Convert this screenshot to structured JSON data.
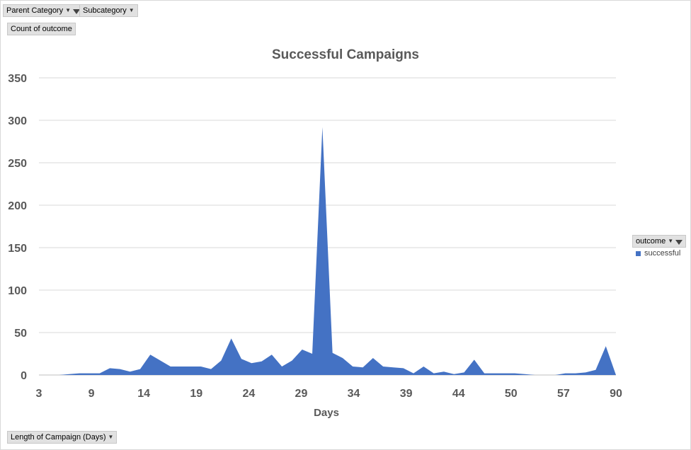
{
  "pivot": {
    "parent_category_label": "Parent Category",
    "subcategory_label": "Subcategory",
    "values_label": "Count of outcome",
    "axis_field_label": "Length of Campaign (Days)",
    "legend_field_label": "outcome"
  },
  "colors": {
    "series": "#4472c4",
    "grid": "#d9d9d9",
    "text": "#595959",
    "title": "#595959"
  },
  "chart_data": {
    "type": "area",
    "title": "Successful Campaigns",
    "xlabel": "Days",
    "ylabel": "",
    "ylim": [
      0,
      350
    ],
    "yticks": [
      0,
      50,
      100,
      150,
      200,
      250,
      300,
      350
    ],
    "xtick_labels": [
      "3",
      "9",
      "14",
      "19",
      "24",
      "29",
      "34",
      "39",
      "44",
      "50",
      "57",
      "90"
    ],
    "legend": "right",
    "grid": true,
    "series": [
      {
        "name": "successful",
        "values": [
          0,
          0,
          0,
          1,
          2,
          2,
          2,
          8,
          7,
          4,
          7,
          24,
          17,
          10,
          10,
          10,
          10,
          7,
          17,
          43,
          19,
          14,
          16,
          24,
          10,
          17,
          30,
          25,
          292,
          26,
          20,
          10,
          9,
          20,
          10,
          9,
          8,
          2,
          10,
          2,
          4,
          1,
          3,
          18,
          2,
          2,
          2,
          2,
          1,
          0,
          0,
          0,
          2,
          2,
          3,
          6,
          34,
          0
        ]
      }
    ]
  }
}
